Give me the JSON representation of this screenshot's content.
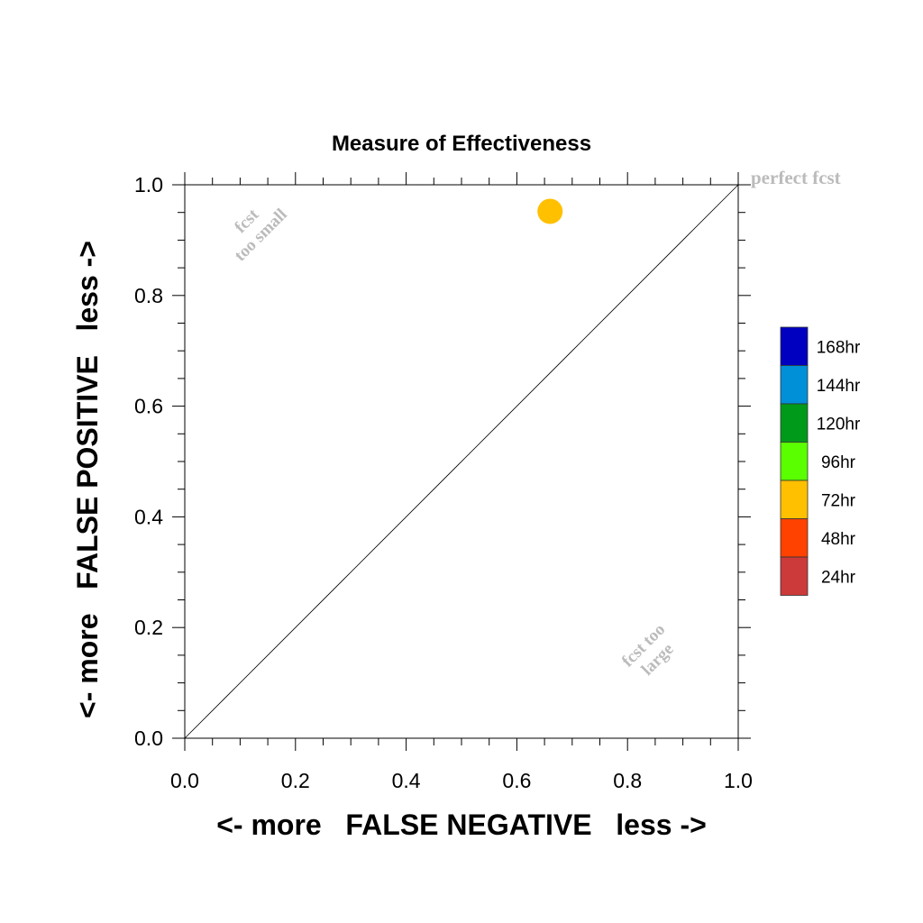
{
  "chart_data": {
    "type": "scatter",
    "title": "Measure of Effectiveness",
    "xlabel": "<- more   FALSE NEGATIVE   less ->",
    "ylabel": "<- more   FALSE POSITIVE   less ->",
    "xlim": [
      0.0,
      1.0
    ],
    "ylim": [
      0.0,
      1.0
    ],
    "x_ticks": [
      "0.0",
      "0.2",
      "0.4",
      "0.6",
      "0.8",
      "1.0"
    ],
    "y_ticks": [
      "0.0",
      "0.2",
      "0.4",
      "0.6",
      "0.8",
      "1.0"
    ],
    "grid": false,
    "reference_line": {
      "from": [
        0.0,
        0.0
      ],
      "to": [
        1.0,
        1.0
      ],
      "color": "#000000"
    },
    "points": [
      {
        "series": "72hr",
        "x": 0.66,
        "y": 0.952,
        "color": "#FFC000"
      }
    ],
    "annotations": {
      "perfect": "perfect fcst",
      "too_small_1": "fcst",
      "too_small_2": "too small",
      "too_large_1": "fcst too",
      "too_large_2": "large",
      "color": "#BBBBBB"
    },
    "legend": {
      "placement": "right",
      "entries": [
        {
          "label": "168hr",
          "color": "#0000C0"
        },
        {
          "label": "144hr",
          "color": "#0090D8"
        },
        {
          "label": "120hr",
          "color": "#009A1A"
        },
        {
          "label": "96hr",
          "color": "#5AFF00"
        },
        {
          "label": "72hr",
          "color": "#FFC000"
        },
        {
          "label": "48hr",
          "color": "#FF4200"
        },
        {
          "label": "24hr",
          "color": "#CC3A3A"
        }
      ]
    }
  }
}
